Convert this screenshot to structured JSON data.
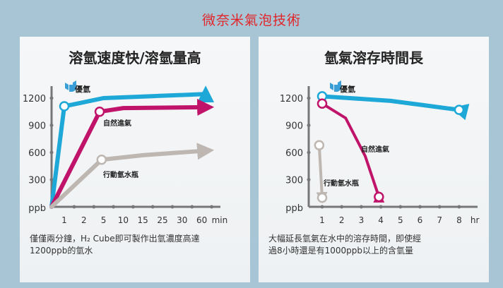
{
  "title": "微奈米氣泡技術",
  "chart_data": [
    {
      "type": "line",
      "title": "溶氫速度快/溶氫量高",
      "ylabel": "ppb",
      "xlabel": "min",
      "categories": [
        "1",
        "2",
        "5",
        "10",
        "15",
        "25",
        "30",
        "60"
      ],
      "x_unit": "min",
      "yticks": [
        "1200",
        "900",
        "600",
        "300"
      ],
      "ylim": [
        0,
        1300
      ],
      "series": [
        {
          "name": "優氫",
          "color": "#1ea8d8",
          "points": [
            [
              0,
              0
            ],
            [
              1,
              1110
            ],
            [
              3,
              1200
            ],
            [
              8.2,
              1245
            ]
          ],
          "markers": [
            1
          ],
          "arrow": true,
          "logo": true
        },
        {
          "name": "自然進氣",
          "color": "#c0136a",
          "points": [
            [
              0,
              0
            ],
            [
              2.8,
              1050
            ],
            [
              4,
              1090
            ],
            [
              8.2,
              1100
            ]
          ],
          "markers": [
            1
          ],
          "arrow": true
        },
        {
          "name": "行動氫水瓶",
          "color": "#bdb6b1",
          "points": [
            [
              0,
              0
            ],
            [
              2.9,
              520
            ],
            [
              5,
              570
            ],
            [
              8.2,
              620
            ]
          ],
          "markers": [
            1
          ],
          "arrow": true
        }
      ],
      "caption": [
        "僅僅兩分鐘，H₂ Cube即可製作出氫濃度高達",
        "1200ppb的氫水"
      ]
    },
    {
      "type": "line",
      "title": "氫氣溶存時間長",
      "ylabel": "ppb",
      "xlabel": "hr",
      "categories": [
        "1",
        "2",
        "3",
        "4",
        "5",
        "6",
        "7",
        "8"
      ],
      "x_unit": "hr",
      "yticks": [
        "1200",
        "900",
        "600",
        "300"
      ],
      "ylim": [
        0,
        1300
      ],
      "series": [
        {
          "name": "優氫",
          "color": "#1ea8d8",
          "points": [
            [
              1,
              1220
            ],
            [
              4.5,
              1170
            ],
            [
              8,
              1070
            ]
          ],
          "markers": [
            0,
            2
          ],
          "arrow": true,
          "logo": true
        },
        {
          "name": "自然進氣",
          "color": "#c0136a",
          "points": [
            [
              1,
              1140
            ],
            [
              2.2,
              980
            ],
            [
              3.2,
              560
            ],
            [
              3.9,
              110
            ]
          ],
          "markers": [
            0,
            3
          ],
          "arrow": true
        },
        {
          "name": "行動氫水瓶",
          "color": "#bdb6b1",
          "points": [
            [
              0.85,
              680
            ],
            [
              1,
              100
            ]
          ],
          "markers": [
            0,
            1
          ],
          "arrow": true
        }
      ],
      "caption": [
        "大幅延長氫氣在水中的溶存時間，即使經",
        "過8小時還是有1000ppb以上的含氫量"
      ]
    }
  ]
}
